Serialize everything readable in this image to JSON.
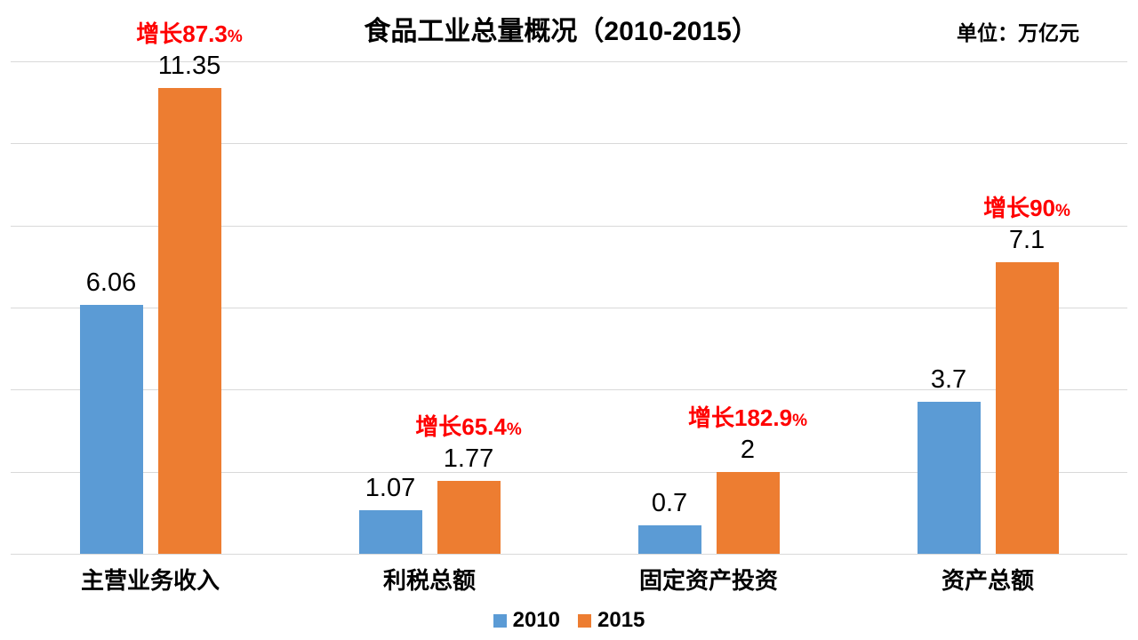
{
  "title": "食品工业总量概况（2010-2015）",
  "unit_label": "单位：万亿元",
  "colors": {
    "series_2010": "#5B9BD5",
    "series_2015": "#ED7D31",
    "growth_text": "#FF0000",
    "gridline": "#D9D9D9",
    "text": "#000000"
  },
  "chart_data": {
    "type": "bar",
    "title": "食品工业总量概况（2010-2015）",
    "unit": "单位：万亿元",
    "categories": [
      "主营业务收入",
      "利税总额",
      "固定资产投资",
      "资产总额"
    ],
    "series": [
      {
        "name": "2010",
        "color": "#5B9BD5",
        "values": [
          6.06,
          1.07,
          0.7,
          3.7
        ],
        "labels": [
          "6.06",
          "1.07",
          "0.7",
          "3.7"
        ]
      },
      {
        "name": "2015",
        "color": "#ED7D31",
        "values": [
          11.35,
          1.77,
          2,
          7.1
        ],
        "labels": [
          "11.35",
          "1.77",
          "2",
          "7.1"
        ]
      }
    ],
    "growth_labels": [
      "增长87.3%",
      "增长65.4%",
      "增长182.9%",
      "增长90%"
    ],
    "xlabel": "",
    "ylabel": "",
    "ylim": [
      0,
      12
    ],
    "gridline_step": 2,
    "grid": true,
    "y_axis_tick_labels_visible": false,
    "legend_position": "bottom"
  }
}
